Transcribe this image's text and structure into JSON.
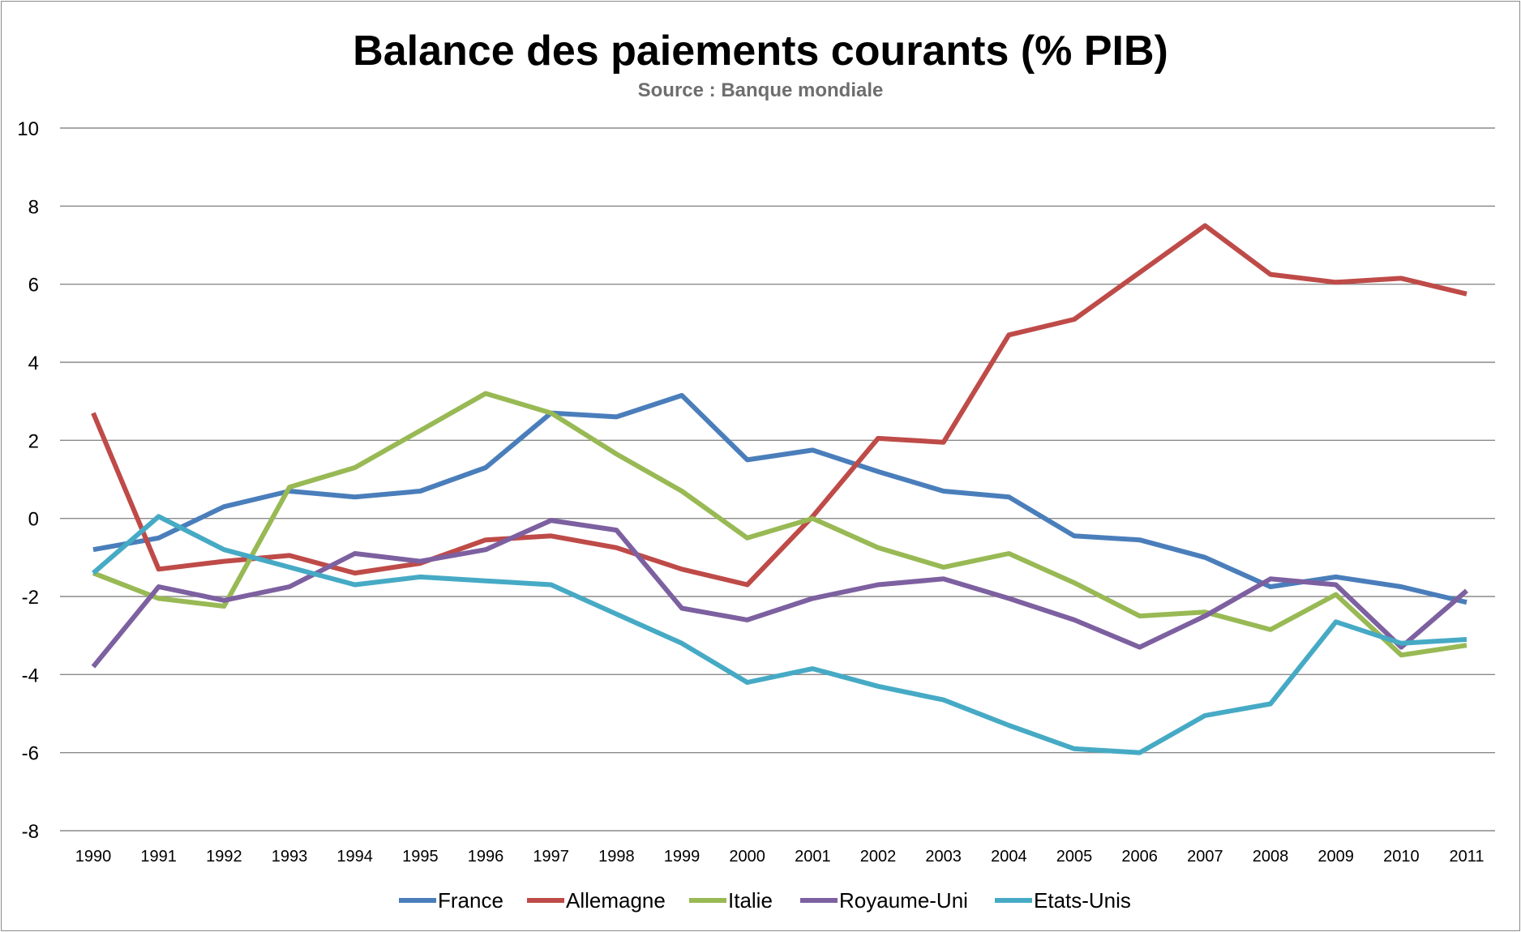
{
  "chart_data": {
    "type": "line",
    "title": "Balance des paiements courants (% PIB)",
    "subtitle": "Source : Banque mondiale",
    "xlabel": "",
    "ylabel": "",
    "ylim": [
      -8,
      10
    ],
    "yticks": [
      "10",
      "8",
      "6",
      "4",
      "2",
      "0",
      "-2",
      "-4",
      "-6",
      "-8"
    ],
    "grid": true,
    "legend_position": "bottom",
    "categories": [
      "1990",
      "1991",
      "1992",
      "1993",
      "1994",
      "1995",
      "1996",
      "1997",
      "1998",
      "1999",
      "2000",
      "2001",
      "2002",
      "2003",
      "2004",
      "2005",
      "2006",
      "2007",
      "2008",
      "2009",
      "2010",
      "2011"
    ],
    "series": [
      {
        "name": "France",
        "color": "#4a7ebb",
        "values": [
          -0.8,
          -0.5,
          0.3,
          0.7,
          0.55,
          0.7,
          1.3,
          2.7,
          2.6,
          3.15,
          1.5,
          1.75,
          1.2,
          0.7,
          0.55,
          -0.45,
          -0.55,
          -1.0,
          -1.75,
          -1.5,
          -1.75,
          -2.15
        ]
      },
      {
        "name": "Allemagne",
        "color": "#be4b48",
        "values": [
          2.7,
          -1.3,
          -1.1,
          -0.95,
          -1.4,
          -1.15,
          -0.55,
          -0.45,
          -0.75,
          -1.3,
          -1.7,
          0.05,
          2.05,
          1.95,
          4.7,
          5.1,
          6.3,
          7.5,
          6.25,
          6.05,
          6.15,
          5.75
        ]
      },
      {
        "name": "Italie",
        "color": "#98b954",
        "values": [
          -1.4,
          -2.05,
          -2.25,
          0.8,
          1.3,
          2.25,
          3.2,
          2.7,
          1.65,
          0.7,
          -0.5,
          0.0,
          -0.75,
          -1.25,
          -0.9,
          -1.65,
          -2.5,
          -2.4,
          -2.85,
          -1.95,
          -3.5,
          -3.25
        ]
      },
      {
        "name": "Royaume-Uni",
        "color": "#7d60a0",
        "values": [
          -3.8,
          -1.75,
          -2.1,
          -1.75,
          -0.9,
          -1.1,
          -0.8,
          -0.05,
          -0.3,
          -2.3,
          -2.6,
          -2.05,
          -1.7,
          -1.55,
          -2.05,
          -2.6,
          -3.3,
          -2.5,
          -1.55,
          -1.7,
          -3.3,
          -1.85
        ]
      },
      {
        "name": "Etats-Unis",
        "color": "#46aac5",
        "values": [
          -1.4,
          0.05,
          -0.8,
          -1.25,
          -1.7,
          -1.5,
          -1.6,
          -1.7,
          -2.45,
          -3.2,
          -4.2,
          -3.85,
          -4.3,
          -4.65,
          -5.3,
          -5.9,
          -6.0,
          -5.05,
          -4.75,
          -2.65,
          -3.2,
          -3.1
        ]
      }
    ]
  }
}
